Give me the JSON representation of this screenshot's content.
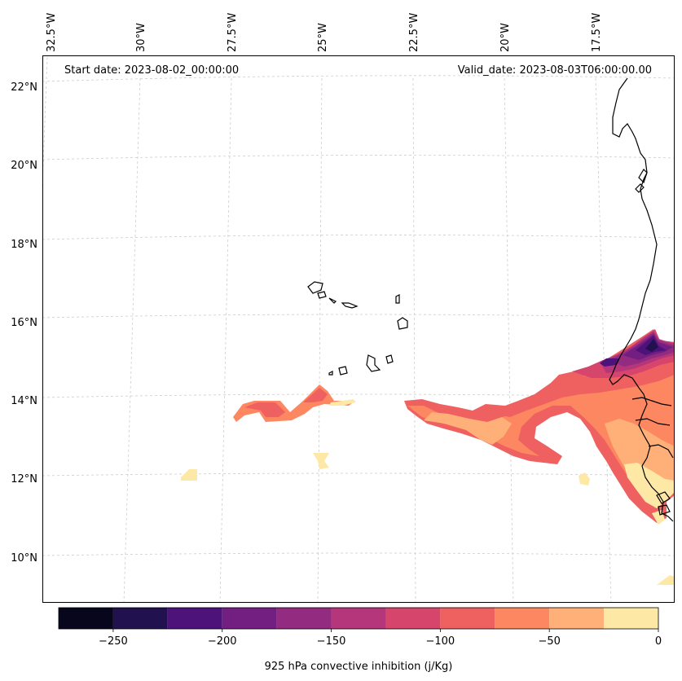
{
  "map": {
    "start_date": "Start date: 2023-08-02_00:00:00",
    "valid_date": "Valid_date: 2023-08-03T06:00:00.00",
    "lon_labels": [
      "32.5°W",
      "30°W",
      "27.5°W",
      "25°W",
      "22.5°W",
      "20°W",
      "17.5°W"
    ],
    "lat_labels": [
      "22°N",
      "20°N",
      "18°N",
      "16°N",
      "14°N",
      "12°N",
      "10°N"
    ]
  },
  "colorbar": {
    "label": "925 hPa convective inhibition (j/Kg)",
    "ticks": [
      "−250",
      "−200",
      "−150",
      "−100",
      "−50",
      "0"
    ],
    "levels": [
      -275,
      -250,
      -225,
      -200,
      -175,
      -150,
      -125,
      -100,
      -75,
      -50,
      -25,
      0
    ],
    "colors": [
      "#07061c",
      "#21114e",
      "#4e127b",
      "#721f81",
      "#932b80",
      "#b5367a",
      "#d6456c",
      "#ef6061",
      "#fc8761",
      "#feb078",
      "#fee8a6"
    ]
  }
}
